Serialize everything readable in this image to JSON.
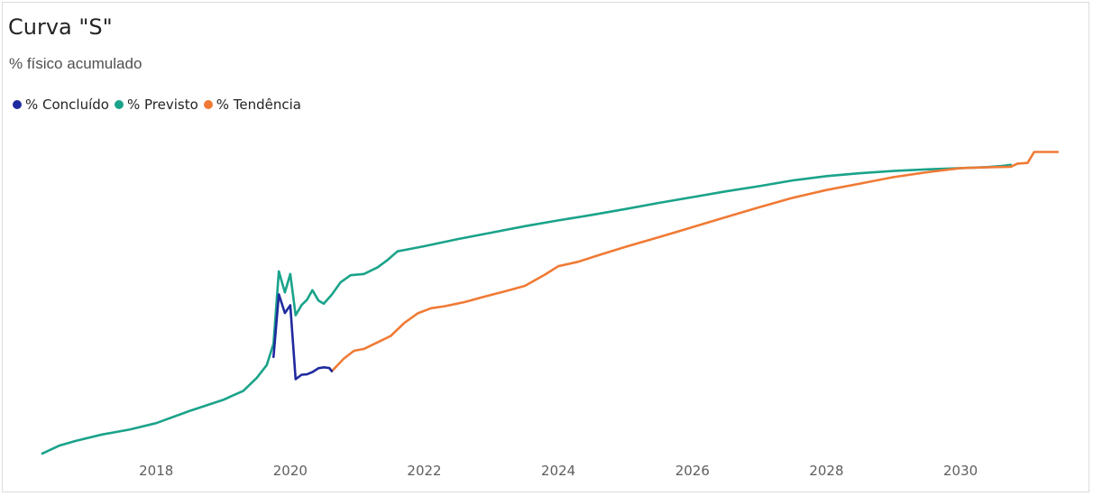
{
  "chart_data": {
    "type": "line",
    "title": "Curva \"S\"",
    "subtitle": "% físico acumulado",
    "xlabel": "",
    "ylabel": "",
    "xlim": [
      2016.1,
      2031.6
    ],
    "ylim": [
      0,
      100
    ],
    "x_ticks": [
      "2018",
      "2020",
      "2022",
      "2024",
      "2026",
      "2028",
      "2030"
    ],
    "grid": false,
    "legend_position": "top-left",
    "series": [
      {
        "name": "% Concluído",
        "color": "#1f2a9e",
        "points": [
          [
            2019.75,
            30.5
          ],
          [
            2019.83,
            49.9
          ],
          [
            2019.92,
            44.1
          ],
          [
            2020.0,
            46.5
          ],
          [
            2020.08,
            23.6
          ],
          [
            2020.17,
            25.0
          ],
          [
            2020.25,
            25.1
          ],
          [
            2020.33,
            25.8
          ],
          [
            2020.42,
            27.0
          ],
          [
            2020.5,
            27.3
          ],
          [
            2020.58,
            27.1
          ],
          [
            2020.62,
            26.1
          ]
        ]
      },
      {
        "name": "% Previsto",
        "color": "#1aa38a",
        "points": [
          [
            2016.3,
            0.6
          ],
          [
            2016.55,
            3.0
          ],
          [
            2016.8,
            4.5
          ],
          [
            2017.2,
            6.5
          ],
          [
            2017.6,
            8.0
          ],
          [
            2018.0,
            10.0
          ],
          [
            2018.5,
            13.8
          ],
          [
            2019.0,
            17.2
          ],
          [
            2019.3,
            20.0
          ],
          [
            2019.5,
            24.0
          ],
          [
            2019.65,
            28.0
          ],
          [
            2019.75,
            34.6
          ],
          [
            2019.83,
            57.0
          ],
          [
            2019.92,
            50.5
          ],
          [
            2020.0,
            56.2
          ],
          [
            2020.08,
            43.4
          ],
          [
            2020.17,
            46.6
          ],
          [
            2020.25,
            48.2
          ],
          [
            2020.33,
            51.2
          ],
          [
            2020.42,
            48.0
          ],
          [
            2020.5,
            47.0
          ],
          [
            2020.62,
            49.8
          ],
          [
            2020.75,
            53.6
          ],
          [
            2020.9,
            55.8
          ],
          [
            2021.1,
            56.2
          ],
          [
            2021.3,
            58.2
          ],
          [
            2021.45,
            60.5
          ],
          [
            2021.6,
            63.2
          ],
          [
            2021.8,
            64.0
          ],
          [
            2022.0,
            64.8
          ],
          [
            2022.5,
            67.0
          ],
          [
            2023.0,
            69.0
          ],
          [
            2023.5,
            71.0
          ],
          [
            2024.0,
            72.8
          ],
          [
            2024.5,
            74.5
          ],
          [
            2025.0,
            76.3
          ],
          [
            2025.5,
            78.2
          ],
          [
            2026.0,
            80.0
          ],
          [
            2026.5,
            81.8
          ],
          [
            2027.0,
            83.4
          ],
          [
            2027.5,
            85.2
          ],
          [
            2028.0,
            86.5
          ],
          [
            2028.5,
            87.4
          ],
          [
            2029.0,
            88.1
          ],
          [
            2029.5,
            88.6
          ],
          [
            2030.0,
            89.0
          ],
          [
            2030.4,
            89.3
          ],
          [
            2030.6,
            89.6
          ],
          [
            2030.75,
            90.0
          ]
        ]
      },
      {
        "name": "% Tendência",
        "color": "#f07a35",
        "points": [
          [
            2020.62,
            26.1
          ],
          [
            2020.8,
            30.0
          ],
          [
            2020.95,
            32.4
          ],
          [
            2021.1,
            33.0
          ],
          [
            2021.3,
            35.0
          ],
          [
            2021.5,
            37.0
          ],
          [
            2021.7,
            41.0
          ],
          [
            2021.9,
            44.0
          ],
          [
            2022.1,
            45.6
          ],
          [
            2022.3,
            46.2
          ],
          [
            2022.6,
            47.5
          ],
          [
            2022.9,
            49.2
          ],
          [
            2023.2,
            50.8
          ],
          [
            2023.5,
            52.5
          ],
          [
            2023.8,
            56.0
          ],
          [
            2024.0,
            58.6
          ],
          [
            2024.3,
            60.0
          ],
          [
            2024.6,
            62.0
          ],
          [
            2025.0,
            64.6
          ],
          [
            2025.5,
            67.6
          ],
          [
            2026.0,
            70.7
          ],
          [
            2026.5,
            73.8
          ],
          [
            2027.0,
            76.9
          ],
          [
            2027.5,
            79.8
          ],
          [
            2028.0,
            82.2
          ],
          [
            2028.5,
            84.2
          ],
          [
            2029.0,
            86.2
          ],
          [
            2029.5,
            87.7
          ],
          [
            2030.0,
            89.0
          ],
          [
            2030.5,
            89.3
          ],
          [
            2030.75,
            89.4
          ],
          [
            2030.85,
            90.4
          ],
          [
            2031.0,
            90.6
          ],
          [
            2031.1,
            94.0
          ],
          [
            2031.45,
            94.0
          ]
        ]
      }
    ]
  }
}
